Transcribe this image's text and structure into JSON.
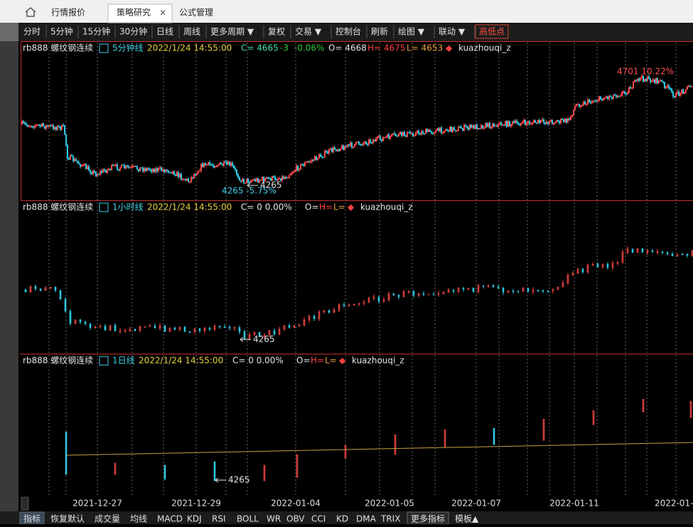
{
  "tabs": [
    "行情报价",
    "策略研究",
    "公式管理"
  ],
  "active_tab": 1,
  "toolbar": [
    "分时",
    "5分钟",
    "15分钟",
    "30分钟",
    "日线",
    "周线",
    "更多周期 ▼",
    "复权",
    "交易 ▼",
    "控制台",
    "刷新",
    "绘图 ▼",
    "联动 ▼",
    "高低点"
  ],
  "panels": [
    {
      "info": [
        {
          "text": "rb888 螺纹钢连续",
          "color": "#e6e6e6"
        },
        {
          "text": "5分钟线",
          "color": "#3fd0e6"
        },
        {
          "text": "2022/1/24 14:55:00",
          "color": "#e6d23c"
        },
        {
          "text": "C= 4665",
          "color": "#3fe0a0"
        },
        {
          "text": "-3",
          "color": "#2ecc40"
        },
        {
          "text": "-0.06%",
          "color": "#2ecc40"
        },
        {
          "text": "O= 4668",
          "color": "#e6e6e6"
        },
        {
          "text": "H= 4675",
          "color": "#ff4040"
        },
        {
          "text": "L= 4653",
          "color": "#e6a23c"
        },
        {
          "text": "◆",
          "color": "#ff4040"
        },
        {
          "text": "kuazhouqi_z",
          "color": "#e6e6e6"
        }
      ],
      "annotations": [
        {
          "text": "4701 10.22%",
          "color": "#ff5050"
        },
        {
          "text": "4265 -5.75%",
          "color": "#3fd0e6"
        },
        {
          "text": "4265",
          "color": "#e6e6e6"
        }
      ]
    },
    {
      "info": [
        {
          "text": "rb888 螺纹钢连续",
          "color": "#e6e6e6"
        },
        {
          "text": "1小时线",
          "color": "#3fd0e6"
        },
        {
          "text": "2022/1/24 14:55:00",
          "color": "#e6d23c"
        },
        {
          "text": "C=  0  0.00%",
          "color": "#e6e6e6"
        },
        {
          "text": "O=",
          "color": "#e6e6e6"
        },
        {
          "text": "H=",
          "color": "#ff4040"
        },
        {
          "text": "L=",
          "color": "#e6a23c"
        },
        {
          "text": "◆",
          "color": "#ff4040"
        },
        {
          "text": "kuazhouqi_z",
          "color": "#e6e6e6"
        }
      ],
      "annotations": [
        {
          "text": "4265",
          "color": "#e6e6e6"
        }
      ]
    },
    {
      "info": [
        {
          "text": "rb888 螺纹钢连续",
          "color": "#e6e6e6"
        },
        {
          "text": "1日线",
          "color": "#3fd0e6"
        },
        {
          "text": "2022/1/24 14:55:00",
          "color": "#e6d23c"
        },
        {
          "text": "C=  0  0.00%",
          "color": "#e6e6e6"
        },
        {
          "text": "O=",
          "color": "#e6e6e6"
        },
        {
          "text": "H=",
          "color": "#ff4040"
        },
        {
          "text": "L=",
          "color": "#e6a23c"
        },
        {
          "text": "◆",
          "color": "#ff4040"
        },
        {
          "text": "kuazhouqi_z",
          "color": "#e6e6e6"
        }
      ],
      "annotations": [
        {
          "text": "4265",
          "color": "#e6e6e6"
        }
      ]
    }
  ],
  "dates": [
    "2021-12-27",
    "2021-12-29",
    "2022-01-04",
    "2022-01-05",
    "2022-01-07",
    "2022-01-11",
    "2022-01-1"
  ],
  "bottom_tabs": [
    "指标",
    "恢复默认",
    "成交量",
    "均线",
    "MACD",
    "KDJ",
    "RSI",
    "BOLL",
    "WR",
    "OBV",
    "CCI",
    "KD",
    "DMA",
    "TRIX",
    "更多指标",
    "模板▲"
  ]
}
